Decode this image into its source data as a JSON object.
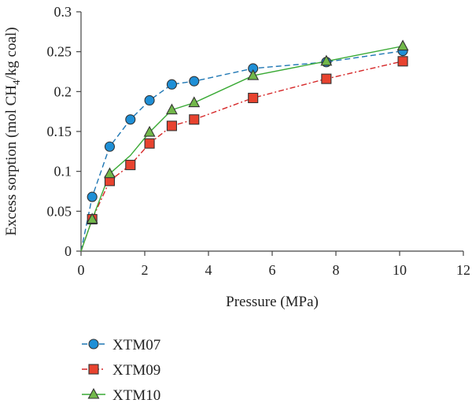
{
  "chart_data": {
    "type": "scatter",
    "title": "",
    "xlabel": "Pressure (MPa)",
    "ylabel": {
      "pre": "Excess sorption (mol CH",
      "sub": "4",
      "post": "/kg coal)"
    },
    "xlim": [
      0,
      12
    ],
    "ylim": [
      0,
      0.3
    ],
    "xticks": [
      0,
      2,
      4,
      6,
      8,
      10,
      12
    ],
    "yticks": [
      0,
      0.05,
      0.1,
      0.15,
      0.2,
      0.25,
      0.3
    ],
    "xtick_labels": [
      "0",
      "2",
      "4",
      "6",
      "8",
      "10",
      "12"
    ],
    "ytick_labels": [
      "0",
      "0.05",
      "0.1",
      "0.15",
      "0.2",
      "0.25",
      "0.3"
    ],
    "grid": false,
    "legend_position": "bottom-left",
    "series": [
      {
        "name": "XTM07",
        "marker": "circle",
        "line_style": "dashed",
        "line_color": "#1f77b4",
        "marker_fill": "#1f8fd6",
        "x": [
          0.35,
          0.9,
          1.55,
          2.15,
          2.85,
          3.55,
          5.4,
          7.7,
          10.1
        ],
        "y": [
          0.068,
          0.131,
          0.165,
          0.189,
          0.209,
          0.213,
          0.229,
          0.237,
          0.251
        ],
        "curve_x": [
          0,
          0.35,
          0.9,
          1.55,
          2.15,
          2.85,
          3.55,
          5.4,
          7.7,
          10.1
        ],
        "curve_y": [
          0,
          0.068,
          0.131,
          0.165,
          0.189,
          0.209,
          0.213,
          0.229,
          0.237,
          0.251
        ]
      },
      {
        "name": "XTM09",
        "marker": "square",
        "line_style": "dashdot",
        "line_color": "#d62728",
        "marker_fill": "#e8432f",
        "x": [
          0.35,
          0.9,
          1.55,
          2.15,
          2.85,
          3.55,
          5.4,
          7.7,
          10.1
        ],
        "y": [
          0.04,
          0.088,
          0.108,
          0.135,
          0.157,
          0.165,
          0.192,
          0.216,
          0.238
        ],
        "curve_x": [
          0,
          0.35,
          0.9,
          1.55,
          2.15,
          2.85,
          3.55,
          5.4,
          7.7,
          10.1
        ],
        "curve_y": [
          0,
          0.04,
          0.088,
          0.108,
          0.135,
          0.157,
          0.165,
          0.192,
          0.216,
          0.238
        ]
      },
      {
        "name": "XTM10",
        "marker": "triangle",
        "line_style": "solid",
        "line_color": "#3aaa35",
        "marker_fill": "#72b84a",
        "x": [
          0.35,
          0.9,
          2.15,
          2.85,
          3.55,
          5.4,
          7.7,
          10.1
        ],
        "y": [
          0.04,
          0.097,
          0.149,
          0.177,
          0.186,
          0.22,
          0.238,
          0.257
        ],
        "curve_x": [
          0,
          0.35,
          0.9,
          1.55,
          2.15,
          2.85,
          3.55,
          5.4,
          7.7,
          10.1
        ],
        "curve_y": [
          0,
          0.04,
          0.097,
          0.12,
          0.149,
          0.177,
          0.186,
          0.22,
          0.238,
          0.257
        ]
      }
    ]
  }
}
